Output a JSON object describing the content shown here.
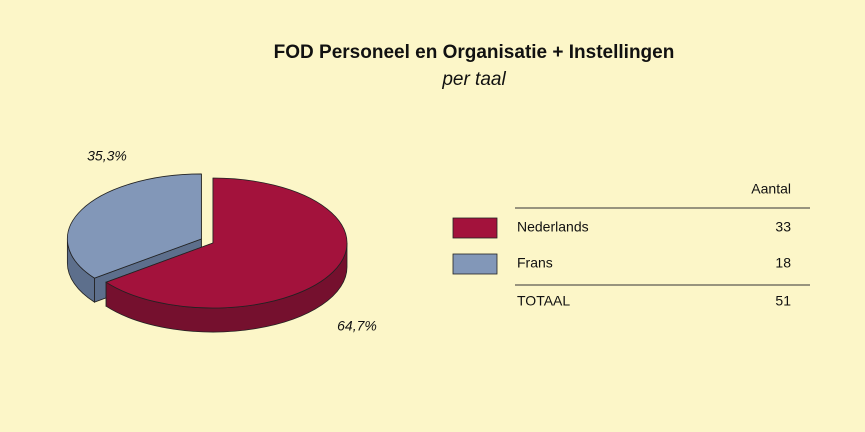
{
  "chart_data": {
    "type": "pie",
    "title": "FOD Personeel en Organisatie + Instellingen",
    "subtitle": "per taal",
    "categories": [
      "Nederlands",
      "Frans"
    ],
    "values": [
      64.7,
      35.3
    ],
    "value_labels": [
      "64,7%",
      "35,3%"
    ],
    "colors": [
      "#a3123c",
      "#8297b8"
    ],
    "side_colors": [
      "#75102e",
      "#5d6f8c"
    ],
    "count_header": "Aantal",
    "counts": [
      33,
      18
    ],
    "total_label": "TOTAAL",
    "total": 51
  }
}
